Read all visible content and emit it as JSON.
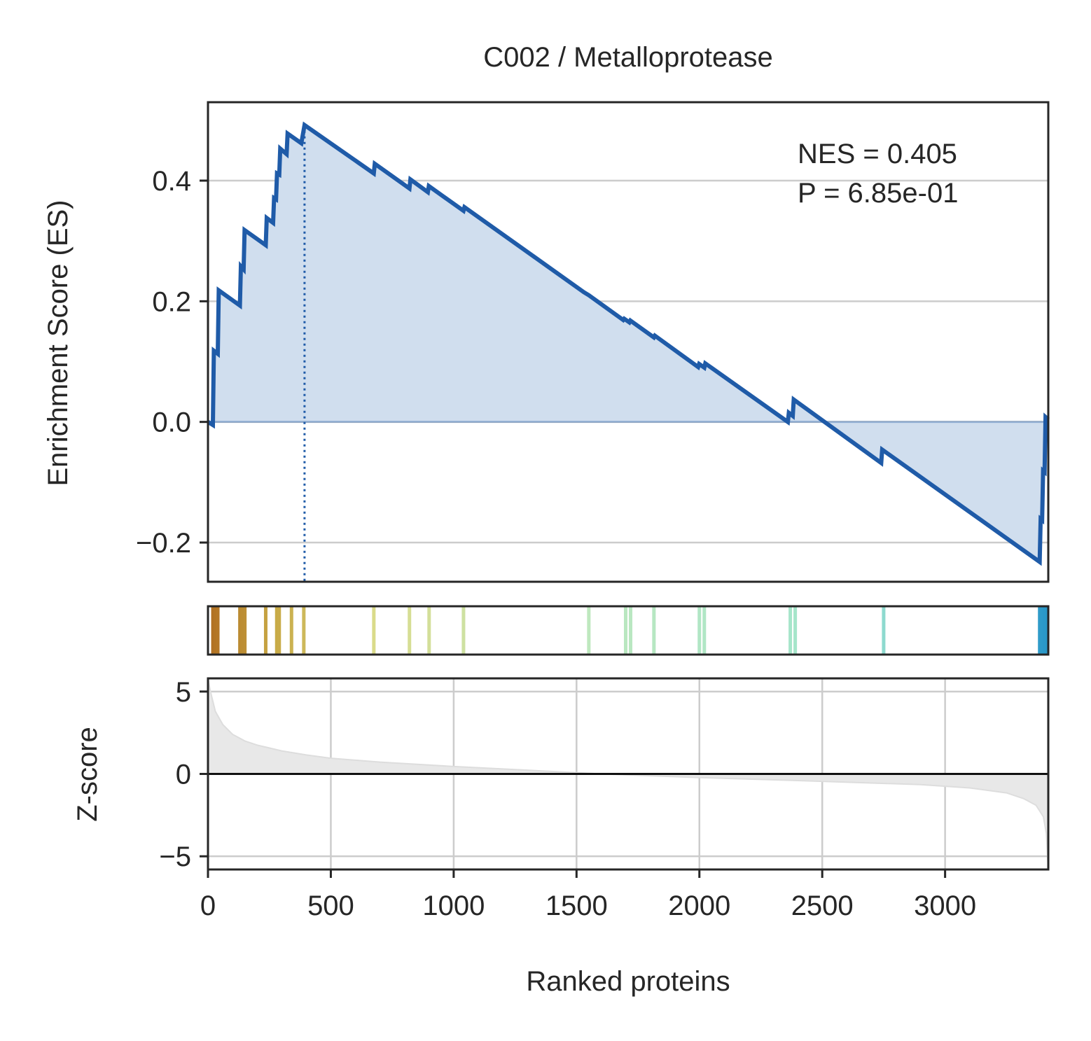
{
  "chart_data": {
    "type": "line",
    "title": "C002 / Metalloprotease",
    "xlabel": "Ranked proteins",
    "annotation": {
      "nes_text": "NES = 0.405",
      "p_text": "P = 6.85e-01"
    },
    "colors": {
      "es_line": "#1f5ba8",
      "es_fill": "#d0deee",
      "zscore_fill": "#e8e8e8",
      "grid": "#cccccc",
      "axes": "#262626"
    },
    "xlim": [
      0,
      3420
    ],
    "xticks": [
      0,
      500,
      1000,
      1500,
      2000,
      2500,
      3000
    ],
    "xtick_labels": [
      "0",
      "500",
      "1000",
      "1500",
      "2000",
      "2500",
      "3000"
    ],
    "es_panel": {
      "ylabel": "Enrichment Score (ES)",
      "ylim": [
        -0.265,
        0.53
      ],
      "yticks": [
        -0.2,
        0,
        0.2,
        0.4
      ],
      "ytick_labels": [
        "−0.2",
        "0.0",
        "0.2",
        "0.4"
      ],
      "grid": "y",
      "peak_rank": 393,
      "points": [
        [
          0,
          0
        ],
        [
          20,
          -0.005
        ],
        [
          24,
          0.118
        ],
        [
          40,
          0.113
        ],
        [
          44,
          0.218
        ],
        [
          130,
          0.193
        ],
        [
          134,
          0.258
        ],
        [
          145,
          0.253
        ],
        [
          149,
          0.318
        ],
        [
          235,
          0.293
        ],
        [
          239,
          0.338
        ],
        [
          265,
          0.33
        ],
        [
          269,
          0.371
        ],
        [
          277,
          0.369
        ],
        [
          281,
          0.412
        ],
        [
          290,
          0.41
        ],
        [
          294,
          0.453
        ],
        [
          320,
          0.444
        ],
        [
          324,
          0.478
        ],
        [
          380,
          0.462
        ],
        [
          393,
          0.492
        ],
        [
          675,
          0.412
        ],
        [
          679,
          0.428
        ],
        [
          820,
          0.387
        ],
        [
          824,
          0.402
        ],
        [
          895,
          0.381
        ],
        [
          899,
          0.391
        ],
        [
          1040,
          0.35
        ],
        [
          1044,
          0.356
        ],
        [
          1530,
          0.215
        ],
        [
          1550,
          0.21
        ],
        [
          1690,
          0.169
        ],
        [
          1694,
          0.171
        ],
        [
          1715,
          0.165
        ],
        [
          1719,
          0.168
        ],
        [
          1815,
          0.14
        ],
        [
          1819,
          0.143
        ],
        [
          1995,
          0.091
        ],
        [
          1999,
          0.096
        ],
        [
          2020,
          0.09
        ],
        [
          2024,
          0.097
        ],
        [
          2360,
          0.0
        ],
        [
          2364,
          0.015
        ],
        [
          2380,
          0.01
        ],
        [
          2384,
          0.037
        ],
        [
          2740,
          -0.068
        ],
        [
          2744,
          -0.046
        ],
        [
          3385,
          -0.232
        ],
        [
          3389,
          -0.161
        ],
        [
          3395,
          -0.163
        ],
        [
          3399,
          -0.081
        ],
        [
          3405,
          -0.083
        ],
        [
          3409,
          0.008
        ],
        [
          3420,
          0.004
        ]
      ]
    },
    "hits": {
      "ranks": [
        20,
        30,
        40,
        130,
        140,
        150,
        235,
        280,
        290,
        340,
        390,
        675,
        820,
        900,
        1040,
        1550,
        1700,
        1720,
        1815,
        2000,
        2020,
        2370,
        2390,
        2750,
        3385,
        3395,
        3405,
        3415
      ]
    },
    "zscore_panel": {
      "ylabel": "Z-score",
      "ylim": [
        -5.8,
        5.8
      ],
      "yticks": [
        -5,
        0,
        5
      ],
      "ytick_labels": [
        "−5",
        "0",
        "5"
      ],
      "grid": "both",
      "curve": [
        [
          0,
          5.8
        ],
        [
          10,
          5.0
        ],
        [
          30,
          3.8
        ],
        [
          60,
          3.0
        ],
        [
          100,
          2.4
        ],
        [
          150,
          2.0
        ],
        [
          200,
          1.75
        ],
        [
          300,
          1.4
        ],
        [
          400,
          1.15
        ],
        [
          500,
          0.95
        ],
        [
          700,
          0.72
        ],
        [
          1000,
          0.45
        ],
        [
          1200,
          0.3
        ],
        [
          1500,
          0.08
        ],
        [
          1600,
          0.0
        ],
        [
          2000,
          -0.22
        ],
        [
          2500,
          -0.45
        ],
        [
          2900,
          -0.65
        ],
        [
          3100,
          -0.85
        ],
        [
          3250,
          -1.15
        ],
        [
          3320,
          -1.5
        ],
        [
          3370,
          -1.9
        ],
        [
          3400,
          -2.6
        ],
        [
          3412,
          -3.6
        ],
        [
          3420,
          -5.8
        ]
      ]
    }
  }
}
